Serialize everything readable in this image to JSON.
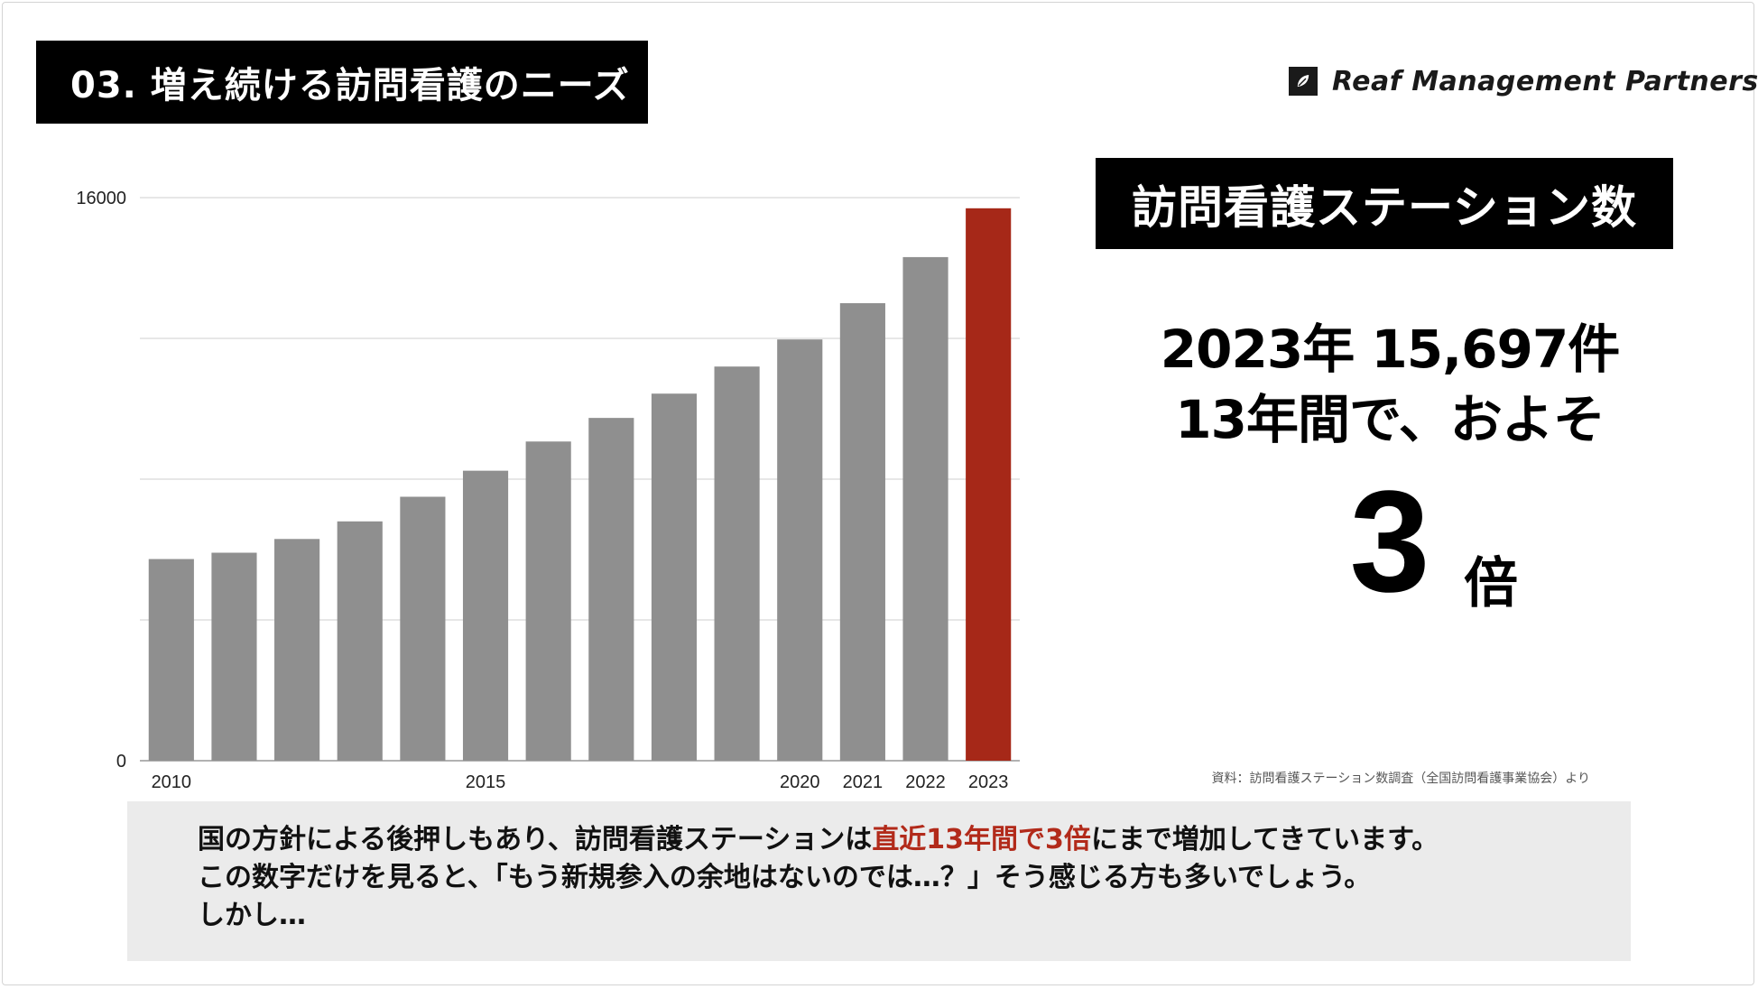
{
  "title": "03. 増え続ける訪問看護のニーズ",
  "brand": {
    "name": "Reaf Management Partners",
    "logo_icon": "leaf-icon"
  },
  "metric_title": "訪問看護ステーション数",
  "stats": {
    "line1": "2023年 15,697件",
    "line2": "13年間で、およそ",
    "big_number": "3",
    "big_unit": "倍"
  },
  "source_note": "資料：訪問看護ステーション数調査（全国訪問看護事業協会）より",
  "note": {
    "line1_prefix": "国の方針による後押しもあり、訪問看護ステーションは",
    "line1_highlight": "直近13年間で3倍",
    "line1_suffix": "にまで増加してきています。",
    "line2": "この数字だけを見ると、「もう新規参入の余地はないのでは…？」そう感じる方も多いでしょう。",
    "line3": "しかし…"
  },
  "colors": {
    "bar": "#8f8f8f",
    "highlight_bar": "#a62818",
    "accent_text": "#b22a1a"
  },
  "chart_data": {
    "type": "bar",
    "categories": [
      "2010",
      "2011",
      "2012",
      "2013",
      "2014",
      "2015",
      "2016",
      "2017",
      "2018",
      "2019",
      "2020",
      "2021",
      "2022",
      "2023"
    ],
    "x_tick_labels": [
      "2010",
      "",
      "",
      "",
      "",
      "2015",
      "",
      "",
      "",
      "",
      "2020",
      "2021",
      "2022",
      "2023"
    ],
    "values": [
      5730,
      5910,
      6300,
      6800,
      7500,
      8240,
      9070,
      9740,
      10430,
      11200,
      11970,
      13000,
      14310,
      15697
    ],
    "highlight_index": 13,
    "ylim": [
      0,
      16000
    ],
    "y_tick_labels": [
      "0",
      "16000"
    ],
    "gridlines": [
      0,
      4000,
      8000,
      12000,
      16000
    ],
    "grid": true
  }
}
